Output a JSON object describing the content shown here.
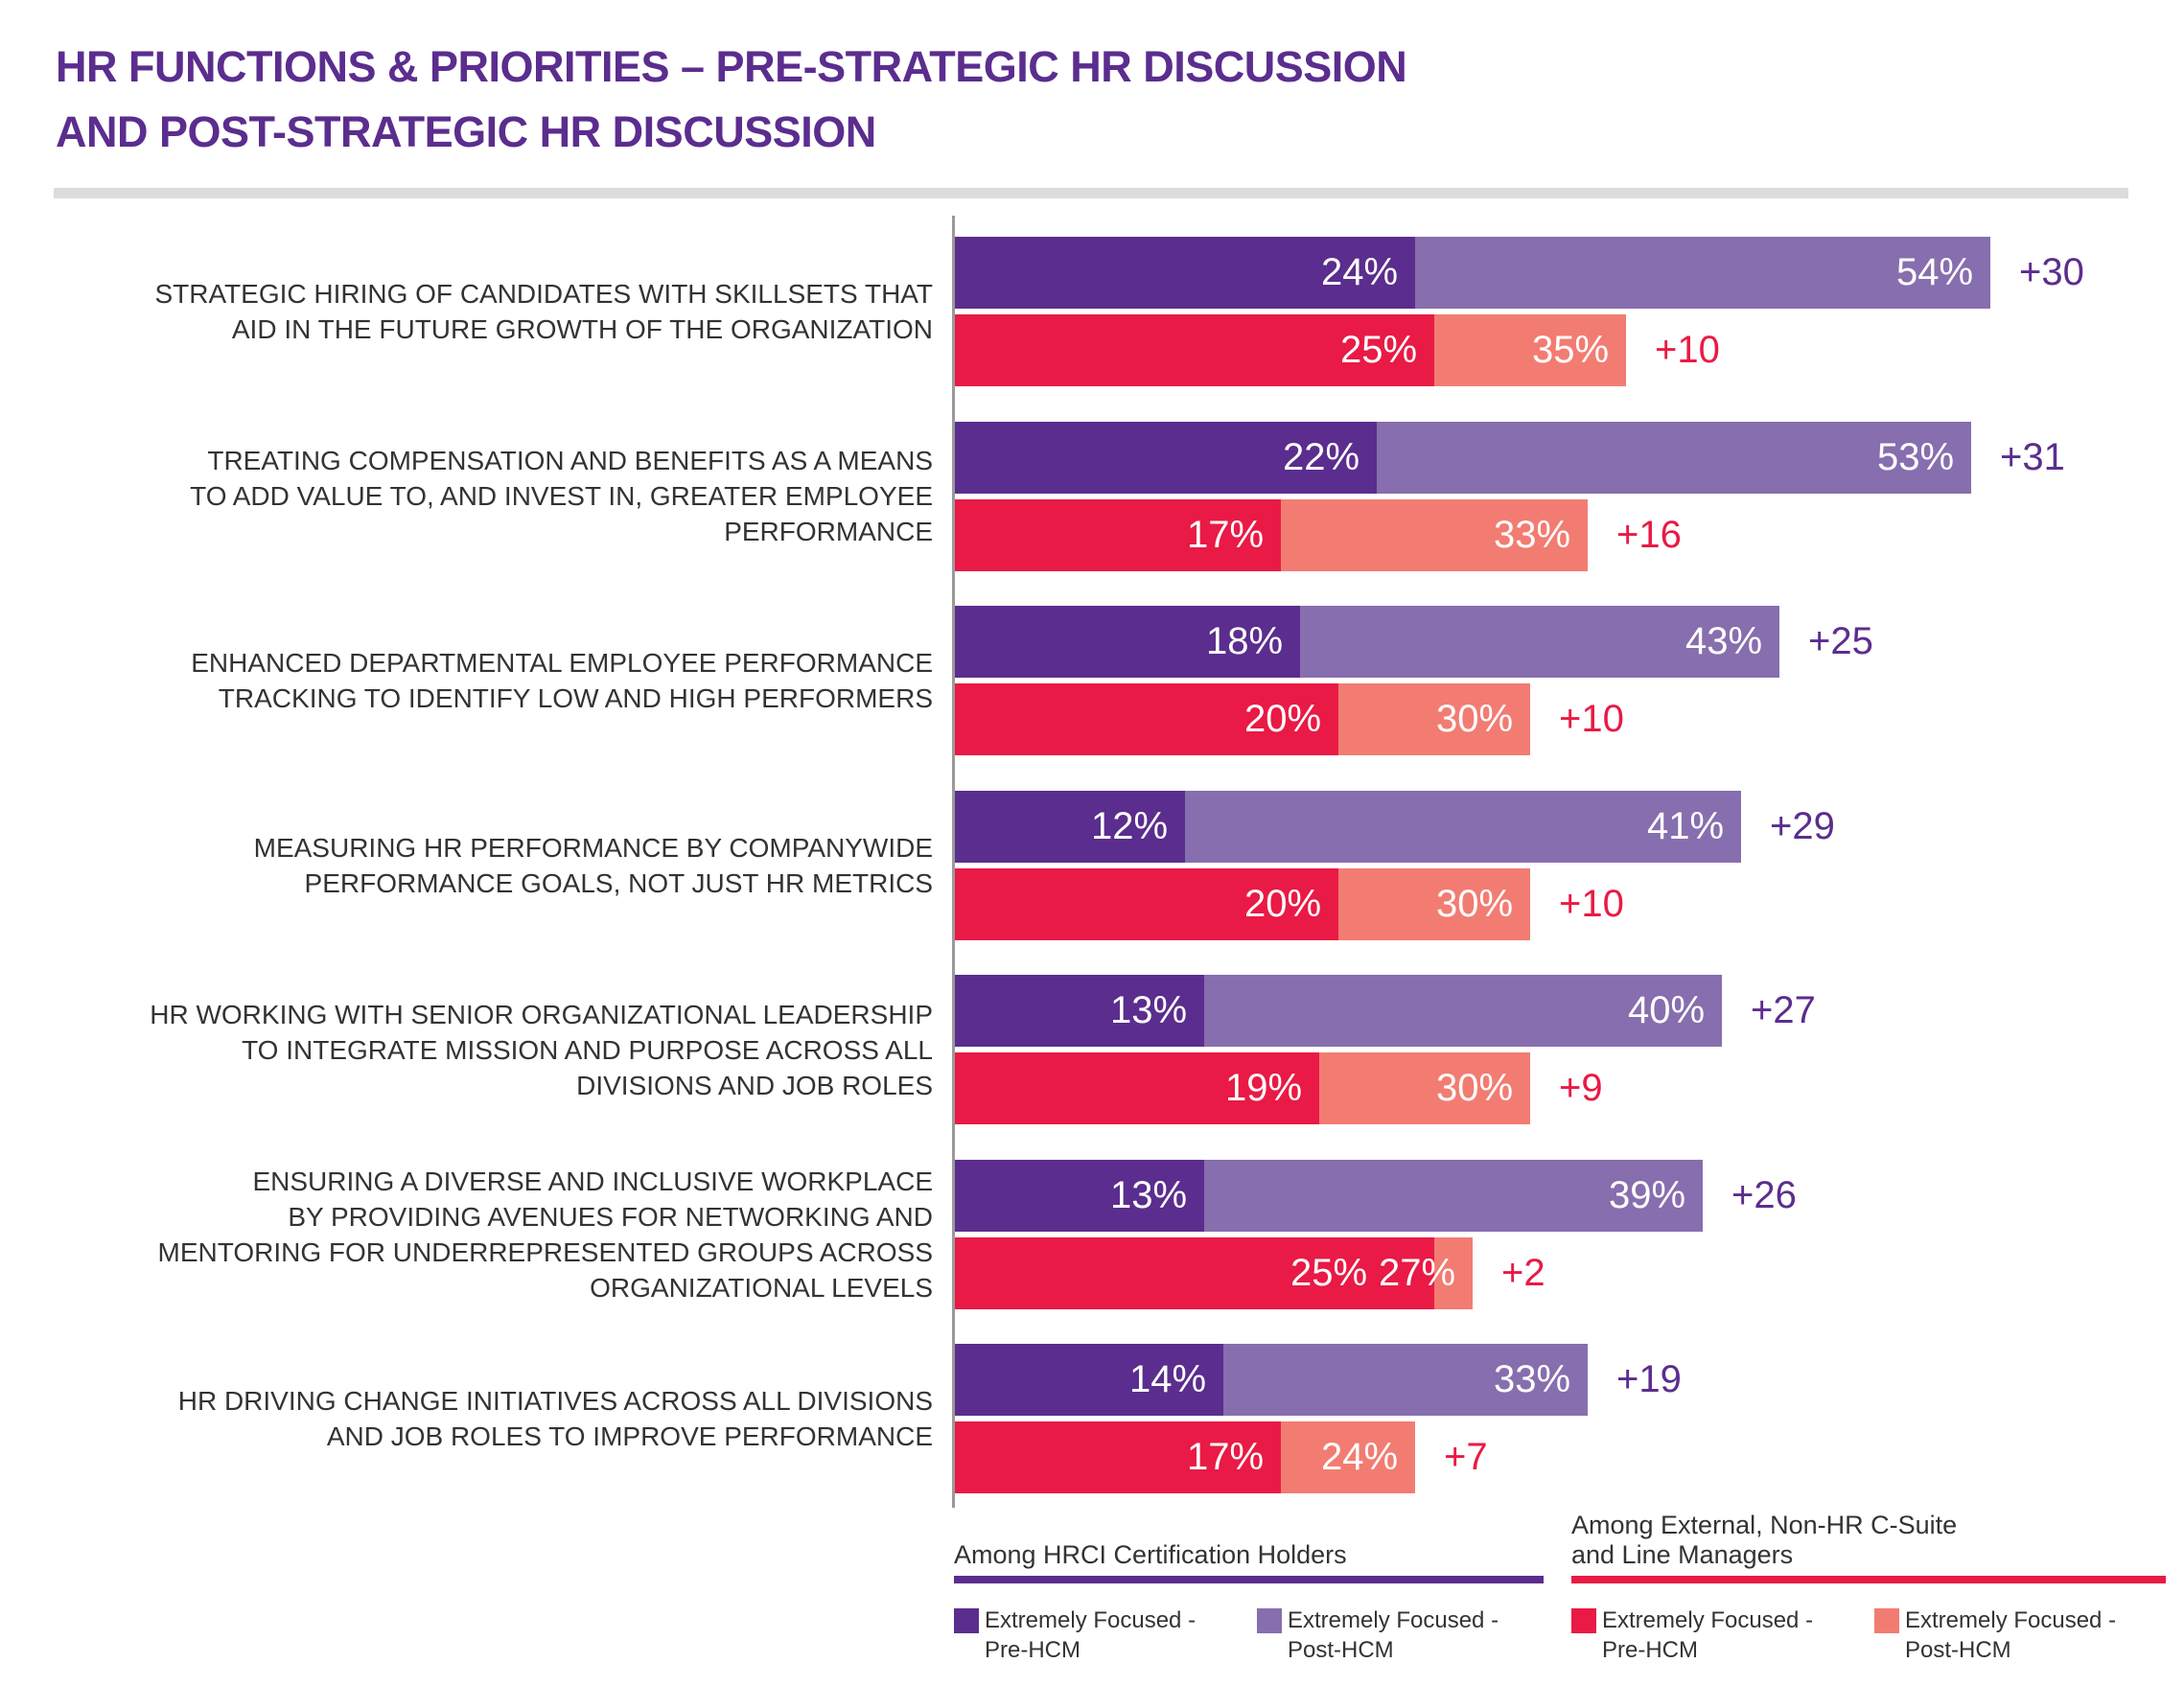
{
  "chart_data": {
    "type": "bar",
    "orientation": "horizontal",
    "stacked_overlay": true,
    "title_lines": [
      "HR FUNCTIONS & PRIORITIES – PRE-STRATEGIC HR DISCUSSION",
      "AND POST-STRATEGIC HR DISCUSSION"
    ],
    "categories": [
      [
        "STRATEGIC HIRING OF CANDIDATES WITH SKILLSETS THAT",
        "AID IN THE FUTURE GROWTH OF THE ORGANIZATION"
      ],
      [
        "TREATING COMPENSATION AND BENEFITS AS A MEANS",
        "TO ADD VALUE TO, AND INVEST IN, GREATER EMPLOYEE",
        "PERFORMANCE"
      ],
      [
        "ENHANCED DEPARTMENTAL EMPLOYEE PERFORMANCE",
        "TRACKING TO IDENTIFY LOW AND HIGH PERFORMERS"
      ],
      [
        "MEASURING HR PERFORMANCE BY COMPANYWIDE",
        "PERFORMANCE GOALS, NOT JUST HR METRICS"
      ],
      [
        "HR WORKING WITH SENIOR ORGANIZATIONAL LEADERSHIP",
        "TO INTEGRATE MISSION AND PURPOSE ACROSS ALL",
        "DIVISIONS AND JOB ROLES"
      ],
      [
        "ENSURING A DIVERSE AND INCLUSIVE WORKPLACE",
        "BY PROVIDING AVENUES FOR NETWORKING AND",
        "MENTORING FOR UNDERREPRESENTED GROUPS ACROSS",
        "ORGANIZATIONAL LEVELS"
      ],
      [
        "HR DRIVING CHANGE INITIATIVES ACROSS ALL DIVISIONS",
        "AND JOB ROLES TO IMPROVE PERFORMANCE"
      ]
    ],
    "groups": [
      {
        "name": "Among HRCI Certification Holders",
        "color": "#5b2d8e",
        "series": [
          {
            "name": "Extremely Focused - Pre-HCM",
            "color": "#5b2d8e",
            "values": [
              24,
              22,
              18,
              12,
              13,
              13,
              14
            ]
          },
          {
            "name": "Extremely Focused - Post-HCM",
            "color": "#876eae",
            "values": [
              54,
              53,
              43,
              41,
              40,
              39,
              33
            ]
          }
        ],
        "differences": [
          "+30",
          "+31",
          "+25",
          "+29",
          "+27",
          "+26",
          "+19"
        ]
      },
      {
        "name": "Among External, Non-HR C-Suite and Line Managers",
        "name_lines": [
          "Among External, Non-HR C-Suite",
          "and Line Managers"
        ],
        "color": "#e91a45",
        "series": [
          {
            "name": "Extremely Focused - Pre-HCM",
            "color": "#e91a45",
            "values": [
              25,
              17,
              20,
              20,
              19,
              25,
              17
            ]
          },
          {
            "name": "Extremely Focused - Post-HCM",
            "color": "#f27c72",
            "values": [
              35,
              33,
              30,
              30,
              30,
              27,
              24
            ]
          }
        ],
        "differences": [
          "+10",
          "+16",
          "+10",
          "+10",
          "+9",
          "+2",
          "+7"
        ]
      }
    ],
    "legend_lines": [
      [
        "Extremely Focused -",
        "Pre-HCM"
      ],
      [
        "Extremely Focused -",
        "Post-HCM"
      ]
    ],
    "value_suffix": "%",
    "xlim": [
      0,
      60
    ],
    "grid": false,
    "legend_position": "bottom-right"
  }
}
